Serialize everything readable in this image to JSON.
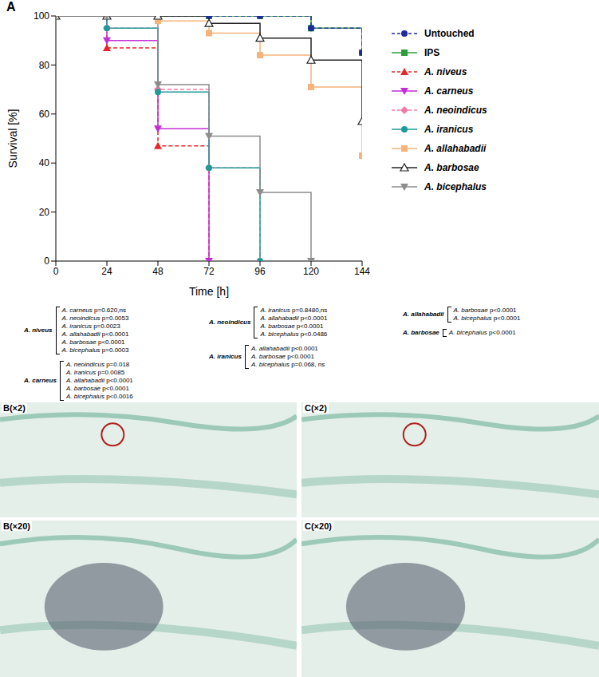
{
  "chart_data": {
    "type": "line",
    "panel": "A",
    "x_label": "Time [h]",
    "y_label": "Survival [%]",
    "x": [
      0,
      24,
      48,
      72,
      96,
      120,
      144
    ],
    "xlim": [
      0,
      144
    ],
    "xticks": [
      0,
      24,
      48,
      72,
      96,
      120,
      144
    ],
    "ylim": [
      0,
      100
    ],
    "yticks": [
      0,
      20,
      40,
      60,
      80,
      100
    ],
    "grid": false,
    "legend": "right",
    "series": [
      {
        "name": "IPS",
        "color": "#2e9e3a",
        "marker": "square",
        "line_style": "solid",
        "values": [
          100,
          100,
          100,
          100,
          100,
          95,
          85
        ]
      },
      {
        "name": "Untouched",
        "color": "#1f2a9c",
        "marker": "circle",
        "line_style": "dashed",
        "values": [
          100,
          100,
          100,
          100,
          100,
          95,
          85
        ]
      },
      {
        "name": "A. niveus",
        "color": "#e8262a",
        "marker": "triangle",
        "line_style": "dashed",
        "values": [
          100,
          87,
          47,
          0,
          null,
          null,
          null
        ]
      },
      {
        "name": "A. carneus",
        "color": "#c22fd6",
        "marker": "triangle-down",
        "line_style": "solid",
        "values": [
          100,
          90,
          54,
          0,
          null,
          null,
          null
        ]
      },
      {
        "name": "A. neoindicus",
        "color": "#f07aa8",
        "marker": "diamond",
        "line_style": "dashed",
        "values": [
          100,
          95,
          70,
          38,
          0,
          null,
          null
        ]
      },
      {
        "name": "A. iranicus",
        "color": "#1f9a9a",
        "marker": "circle",
        "line_style": "solid",
        "values": [
          100,
          95,
          69,
          38,
          0,
          null,
          null
        ]
      },
      {
        "name": "A. allahabadii",
        "color": "#f5b37a",
        "marker": "square",
        "line_style": "solid",
        "values": [
          100,
          100,
          98,
          93,
          84,
          71,
          43
        ]
      },
      {
        "name": "A. barbosae",
        "color": "#222222",
        "marker": "open-triangle",
        "line_style": "solid",
        "values": [
          100,
          100,
          100,
          97,
          91,
          82,
          57
        ]
      },
      {
        "name": "A. bicephalus",
        "color": "#8c8c8c",
        "marker": "triangle-down",
        "line_style": "solid",
        "values": [
          100,
          100,
          72,
          51,
          28,
          0,
          null
        ]
      }
    ]
  },
  "comparisons": [
    {
      "group": "A. niveus",
      "items": [
        {
          "name": "A. carneus",
          "p": "p=0.620,ns"
        },
        {
          "name": "A. neoindicus",
          "p": "p=0.0053"
        },
        {
          "name": "A. iranicus",
          "p": "p=0.0023"
        },
        {
          "name": "A. allahabadii",
          "p": "p<0.0001"
        },
        {
          "name": "A. barbosae",
          "p": "p<0.0001"
        },
        {
          "name": "A. bicephalus",
          "p": "p=0.0003"
        }
      ]
    },
    {
      "group": "A. carneus",
      "items": [
        {
          "name": "A. neoindicus",
          "p": "p=0.018"
        },
        {
          "name": "A. iranicus",
          "p": "p=0.0085"
        },
        {
          "name": "A. allahabadii",
          "p": "p<0.0001"
        },
        {
          "name": "A. barbosae",
          "p": "p<0.0001"
        },
        {
          "name": "A. bicephalus",
          "p": "p<0.0016"
        }
      ]
    },
    {
      "group": "A. neoindicus",
      "items": [
        {
          "name": "A. iranicus",
          "p": "p=0.8480,ns"
        },
        {
          "name": "A. allahabadii",
          "p": "p<0.0001"
        },
        {
          "name": "A. barbosae",
          "p": "p<0.0001"
        },
        {
          "name": "A. bicephalus",
          "p": "p<0.0486"
        }
      ]
    },
    {
      "group": "A. iranicus",
      "items": [
        {
          "name": "A. allahabadii",
          "p": "p<0.0001"
        },
        {
          "name": "A. barbosae",
          "p": "p<0.0001"
        },
        {
          "name": "A. bicephalus",
          "p": "p=0.068, ns"
        }
      ]
    },
    {
      "group": "A. allahabadii",
      "items": [
        {
          "name": "A. barbosae",
          "p": "p<0.0001"
        },
        {
          "name": "A. bicephalus",
          "p": "p<0.0001"
        }
      ]
    },
    {
      "group": "A. barbosae",
      "items": [
        {
          "name": "A. bicephalus",
          "p": "p<0.0001"
        }
      ]
    }
  ],
  "images": [
    {
      "label": "B(×2)"
    },
    {
      "label": "C(×2)"
    },
    {
      "label": "B(×20)"
    },
    {
      "label": "C(×20)"
    }
  ]
}
